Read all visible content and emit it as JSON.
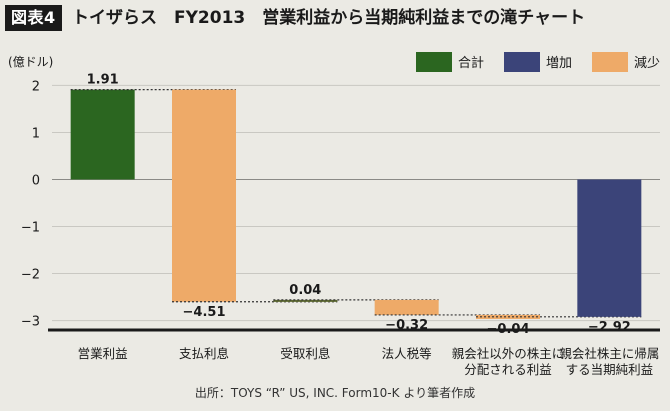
{
  "figure": {
    "badge": "図表4",
    "title": "トイザらス　FY2013　営業利益から当期純利益までの滝チャート",
    "source": "出所：TOYS “R” US, INC. Form10-K より筆者作成"
  },
  "chart_data": {
    "type": "waterfall",
    "unit_label": "(億ドル)",
    "ylim": [
      -3.2,
      2.2
    ],
    "yticks": [
      2,
      1,
      0,
      -1,
      -2,
      -3
    ],
    "ytick_labels": [
      "2",
      "1",
      "0",
      "−1",
      "−2",
      "−3"
    ],
    "grid": true,
    "legend_position": "top-right",
    "legend": [
      {
        "key": "total",
        "label": "合計",
        "color": "#2b6620"
      },
      {
        "key": "increase",
        "label": "増加",
        "color": "#3b4479"
      },
      {
        "key": "decrease",
        "label": "減少",
        "color": "#eeaa68"
      }
    ],
    "bars": [
      {
        "category": [
          "営業利益"
        ],
        "value": 1.91,
        "label": "1.91",
        "start": 0,
        "end": 1.91,
        "kind": "total",
        "label_side": "top"
      },
      {
        "category": [
          "支払利息"
        ],
        "value": -4.51,
        "label": "−4.51",
        "start": 1.91,
        "end": -2.6,
        "kind": "decrease",
        "label_side": "bottom"
      },
      {
        "category": [
          "受取利息"
        ],
        "value": 0.04,
        "label": "0.04",
        "start": -2.6,
        "end": -2.56,
        "kind": "increase",
        "label_side": "top"
      },
      {
        "category": [
          "法人税等"
        ],
        "value": -0.32,
        "label": "−0.32",
        "start": -2.56,
        "end": -2.88,
        "kind": "decrease",
        "label_side": "bottom"
      },
      {
        "category": [
          "親会社以外の株主に",
          "分配される利益"
        ],
        "value": -0.04,
        "label": "−0.04",
        "start": -2.88,
        "end": -2.92,
        "kind": "decrease",
        "label_side": "bottom"
      },
      {
        "category": [
          "親会社株主に帰属",
          "する当期純利益"
        ],
        "value": -2.92,
        "label": "−2.92",
        "start": 0,
        "end": -2.92,
        "kind": "increase",
        "label_side": "bottom"
      }
    ],
    "colors": {
      "total": "#2b6620",
      "increase": "#3b4479",
      "decrease": "#eeaa68",
      "small_increase": "#5f6b33",
      "grid": "#c9c8c2",
      "axis": "#1a1a1a"
    }
  }
}
